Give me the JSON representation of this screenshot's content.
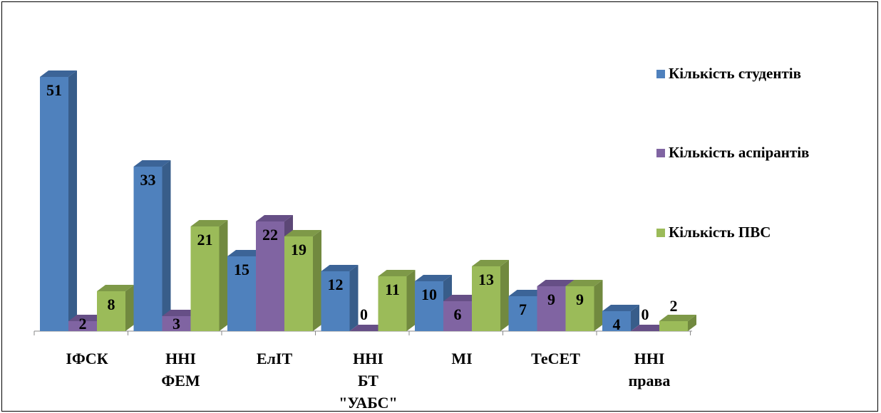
{
  "chart_data": {
    "type": "bar",
    "categories": [
      [
        "ІФСК"
      ],
      [
        "ННІ",
        "ФЕМ"
      ],
      [
        "ЕлІТ"
      ],
      [
        "ННІ",
        "БТ",
        "\"УАБС\""
      ],
      [
        "МІ"
      ],
      [
        "ТеСЕТ"
      ],
      [
        "ННІ",
        "права"
      ]
    ],
    "series": [
      {
        "name": "Кількість студентів",
        "values": [
          51,
          33,
          15,
          12,
          10,
          7,
          4
        ]
      },
      {
        "name": "Кількість аспірантів",
        "values": [
          2,
          3,
          22,
          0,
          6,
          9,
          0
        ]
      },
      {
        "name": "Кількість ПВС",
        "values": [
          8,
          21,
          19,
          11,
          13,
          9,
          2
        ]
      }
    ],
    "colors": {
      "series": [
        "#4f81bd",
        "#8064a2",
        "#9bbb59"
      ],
      "side": [
        "#385d8a",
        "#5c4776",
        "#71893f"
      ],
      "top": [
        "#3c6497",
        "#664f86",
        "#7e9948"
      ]
    },
    "style": "3d-clustered-column",
    "legend_position": "right",
    "grid": false,
    "ylim": [
      0,
      51
    ]
  }
}
